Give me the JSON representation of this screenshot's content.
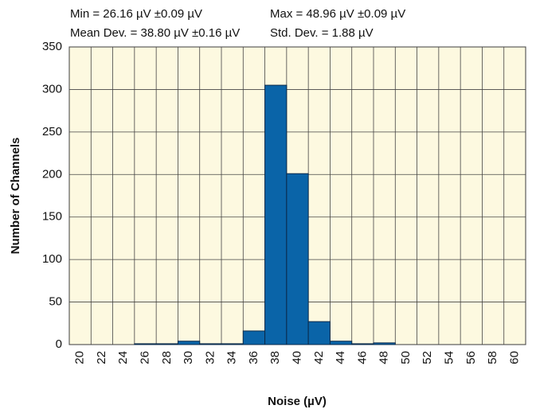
{
  "chart_data": {
    "type": "histogram",
    "annotations": [
      "Min = 26.16 µV ±0.09 µV",
      "Max = 48.96 µV ±0.09 µV",
      "Mean Dev. = 38.80 µV ±0.16 µV",
      "Std. Dev. = 1.88 µV"
    ],
    "xlabel": "Noise (µV)",
    "ylabel": "Number of Channels",
    "bins": [
      19,
      21,
      23,
      25,
      27,
      29,
      31,
      33,
      35,
      37,
      39,
      41,
      43,
      45,
      47,
      49,
      51,
      53,
      55,
      57,
      59,
      61
    ],
    "values": [
      0,
      0,
      0,
      1,
      1,
      4,
      1,
      1,
      16,
      305,
      201,
      27,
      4,
      1,
      2,
      0,
      0,
      0,
      0,
      0,
      0
    ],
    "color": "#0a64a8",
    "xlim": [
      19,
      61
    ],
    "xticks": [
      20,
      22,
      24,
      26,
      28,
      30,
      32,
      34,
      36,
      38,
      40,
      42,
      44,
      46,
      48,
      50,
      52,
      54,
      56,
      58,
      60
    ],
    "ylim": [
      0,
      350
    ],
    "yticks": [
      0,
      50,
      100,
      150,
      200,
      250,
      300,
      350
    ],
    "grid": true
  }
}
